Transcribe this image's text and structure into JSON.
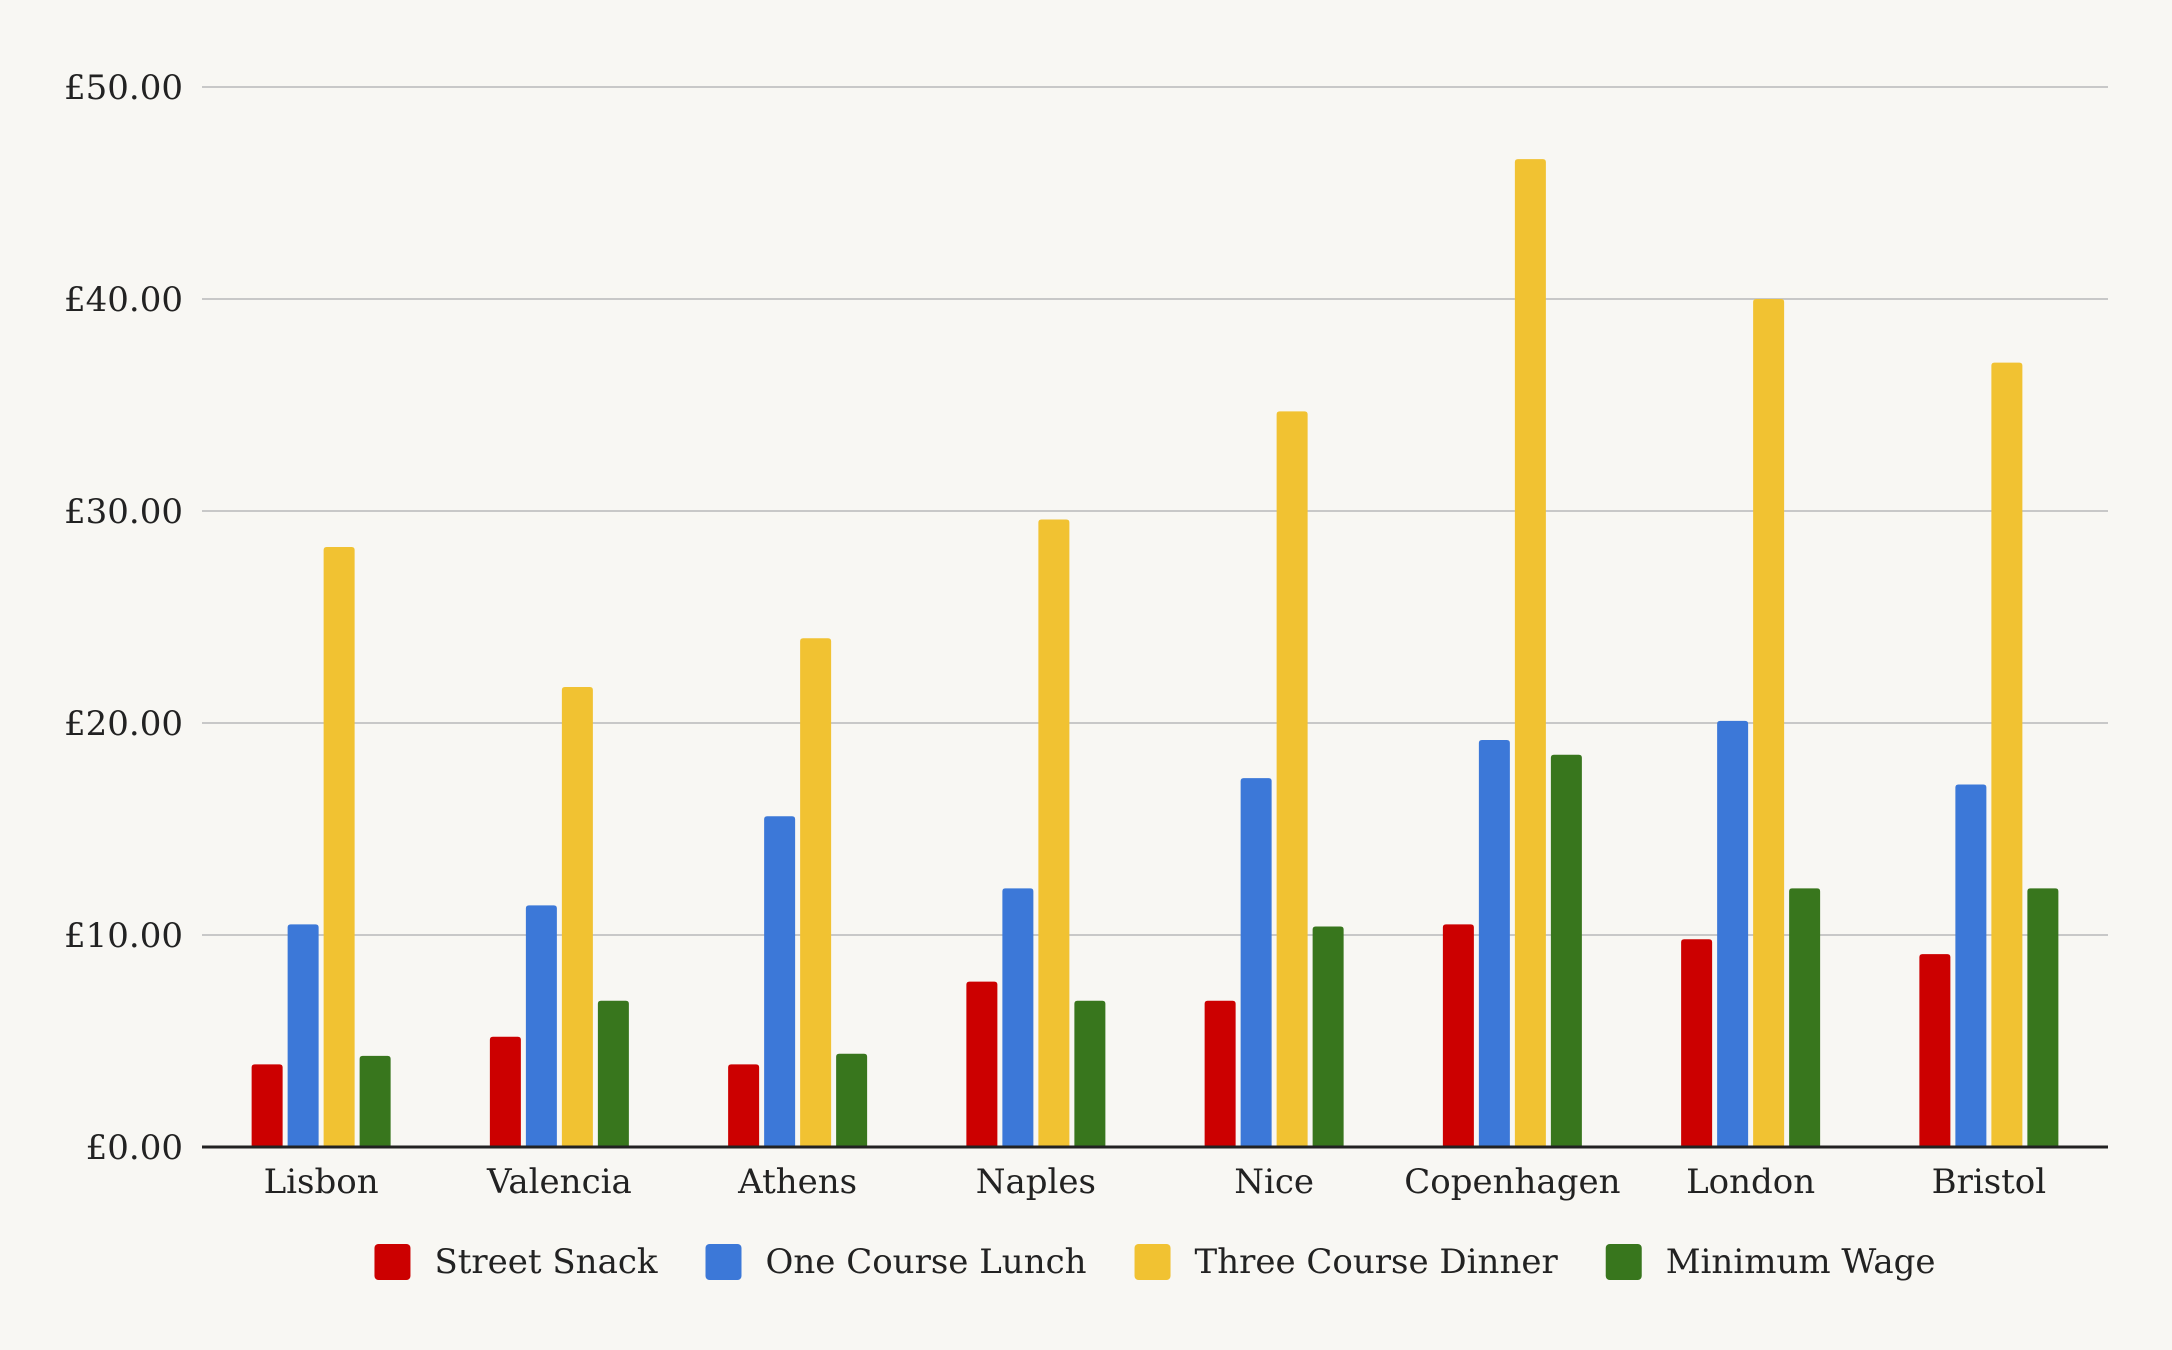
{
  "chart_data": {
    "type": "bar",
    "categories": [
      "Lisbon",
      "Valencia",
      "Athens",
      "Naples",
      "Nice",
      "Copenhagen",
      "London",
      "Bristol"
    ],
    "series": [
      {
        "name": "Street Snack",
        "color": "#cc0000",
        "values": [
          3.9,
          5.2,
          3.9,
          7.8,
          6.9,
          10.5,
          9.8,
          9.1
        ]
      },
      {
        "name": "One Course Lunch",
        "color": "#3c78d8",
        "values": [
          10.5,
          11.4,
          15.6,
          12.2,
          17.4,
          19.2,
          20.1,
          17.1
        ]
      },
      {
        "name": "Three Course Dinner",
        "color": "#f1c232",
        "values": [
          28.3,
          21.7,
          24.0,
          29.6,
          34.7,
          46.6,
          40.0,
          37.0
        ]
      },
      {
        "name": "Minimum Wage",
        "color": "#38761d",
        "values": [
          4.3,
          6.9,
          4.4,
          6.9,
          10.4,
          18.5,
          12.2,
          12.2
        ]
      }
    ],
    "yticks": [
      "£0.00",
      "£10.00",
      "£20.00",
      "£30.00",
      "£40.00",
      "£50.00"
    ],
    "ylim": [
      0,
      50
    ],
    "grid": true,
    "legend_position": "bottom"
  }
}
